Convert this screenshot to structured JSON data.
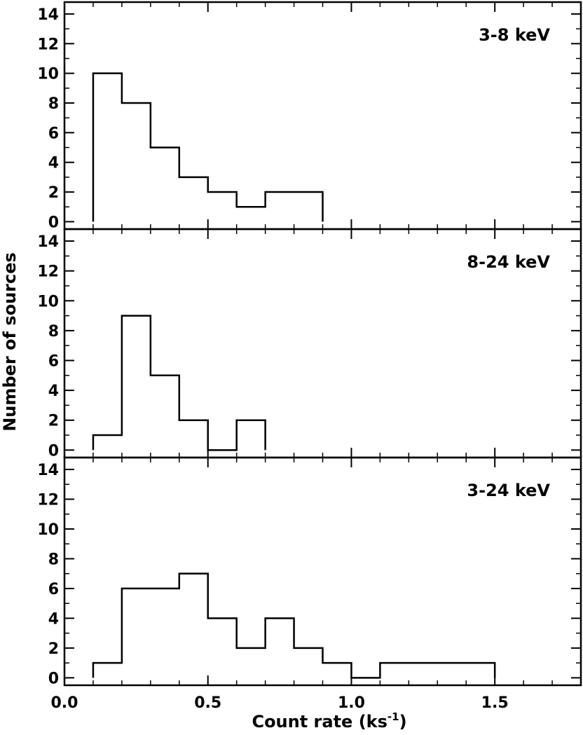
{
  "chart_data": {
    "type": "bar",
    "subtype": "step-histogram",
    "shared_x_axis": true,
    "xlabel": "Count rate (ks",
    "xlabel_superscript": "-1",
    "xlabel_close": ")",
    "ylabel": "Number of sources",
    "xlim": [
      0.0,
      1.8
    ],
    "ylim": [
      -0.5,
      14.8
    ],
    "x_ticks": [
      "0.0",
      "0.5",
      "1.0",
      "1.5"
    ],
    "y_ticks": [
      "0",
      "2",
      "4",
      "6",
      "8",
      "10",
      "12",
      "14"
    ],
    "grid": false,
    "bin_width": 0.1,
    "panels": [
      {
        "label": "3-8 keV",
        "bins": [
          {
            "x0": 0.1,
            "value": 10
          },
          {
            "x0": 0.2,
            "value": 8
          },
          {
            "x0": 0.3,
            "value": 5
          },
          {
            "x0": 0.4,
            "value": 3
          },
          {
            "x0": 0.5,
            "value": 2
          },
          {
            "x0": 0.6,
            "value": 1
          },
          {
            "x0": 0.7,
            "value": 2
          },
          {
            "x0": 0.8,
            "value": 2
          }
        ]
      },
      {
        "label": "8-24 keV",
        "bins": [
          {
            "x0": 0.1,
            "value": 1
          },
          {
            "x0": 0.2,
            "value": 9
          },
          {
            "x0": 0.3,
            "value": 5
          },
          {
            "x0": 0.4,
            "value": 2
          },
          {
            "x0": 0.5,
            "value": 0
          },
          {
            "x0": 0.6,
            "value": 2
          }
        ]
      },
      {
        "label": "3-24 keV",
        "bins": [
          {
            "x0": 0.1,
            "value": 1
          },
          {
            "x0": 0.2,
            "value": 6
          },
          {
            "x0": 0.3,
            "value": 6
          },
          {
            "x0": 0.4,
            "value": 7
          },
          {
            "x0": 0.5,
            "value": 4
          },
          {
            "x0": 0.6,
            "value": 2
          },
          {
            "x0": 0.7,
            "value": 4
          },
          {
            "x0": 0.8,
            "value": 2
          },
          {
            "x0": 0.9,
            "value": 1
          },
          {
            "x0": 1.0,
            "value": 0
          },
          {
            "x0": 1.1,
            "value": 1
          },
          {
            "x0": 1.2,
            "value": 1
          },
          {
            "x0": 1.3,
            "value": 1
          },
          {
            "x0": 1.4,
            "value": 1
          }
        ]
      }
    ],
    "colors": {
      "line": "#000000",
      "background": "#ffffff"
    }
  }
}
